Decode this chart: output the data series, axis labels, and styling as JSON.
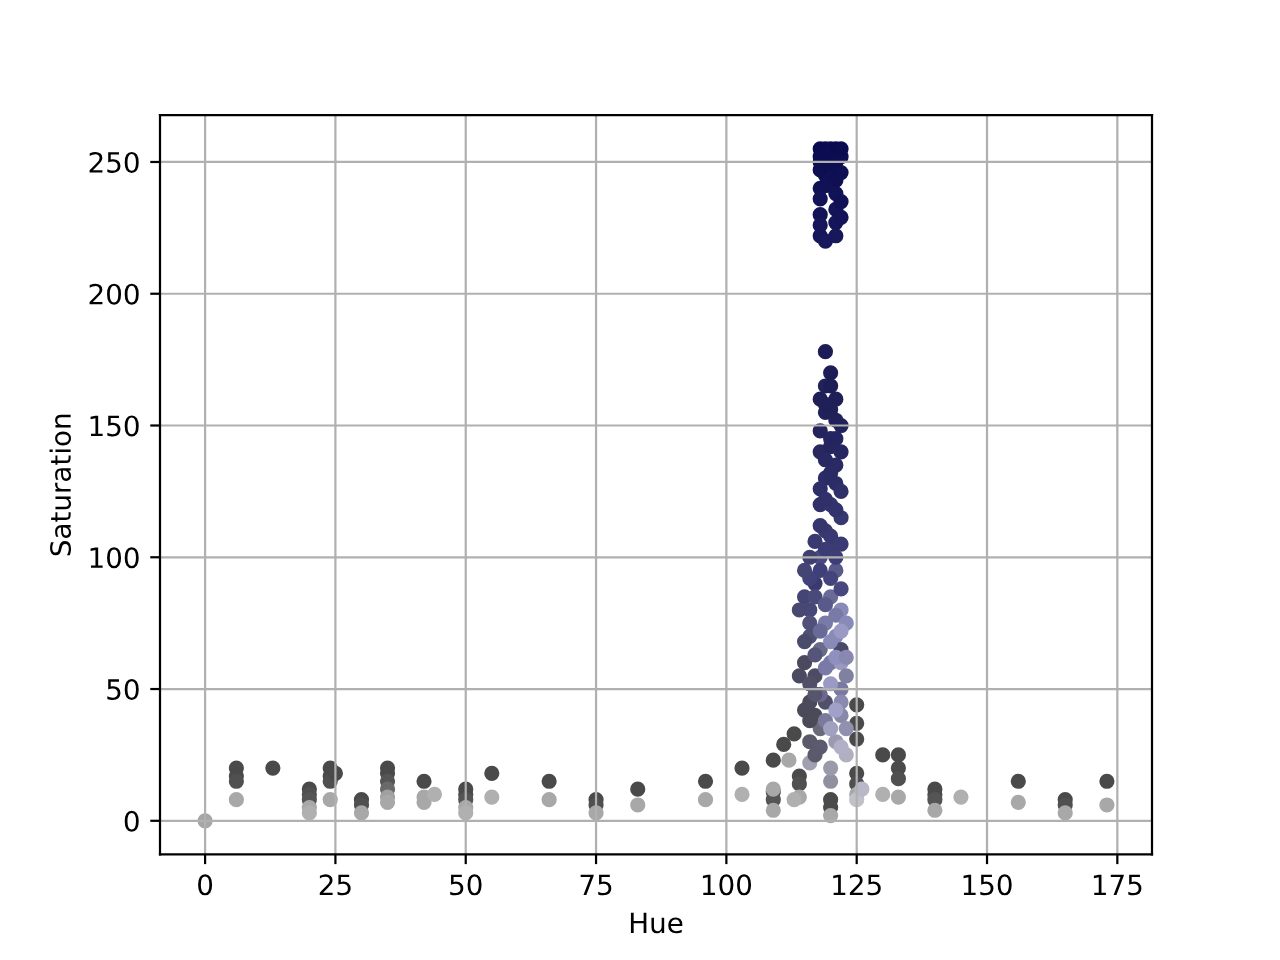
{
  "chart_data": {
    "type": "scatter",
    "xlabel": "Hue",
    "ylabel": "Saturation",
    "x": [
      0,
      6,
      6,
      6,
      6,
      13,
      20,
      20,
      20,
      20,
      20,
      24,
      24,
      24,
      24,
      25,
      30,
      30,
      30,
      35,
      35,
      35,
      35,
      35,
      35,
      42,
      42,
      42,
      44,
      50,
      50,
      50,
      50,
      50,
      55,
      55,
      66,
      66,
      75,
      75,
      75,
      83,
      83,
      96,
      96,
      103,
      103,
      109,
      109,
      109,
      109,
      109,
      111,
      112,
      113,
      114,
      114,
      114,
      113,
      116,
      120,
      120,
      120,
      120,
      120,
      125,
      125,
      125,
      125,
      125,
      125,
      125,
      126,
      130,
      130,
      133,
      133,
      133,
      133,
      140,
      140,
      140,
      140,
      145,
      156,
      156,
      165,
      165,
      165,
      173,
      173,
      116,
      117,
      118,
      119,
      121,
      122,
      123,
      122,
      116,
      117,
      115,
      116,
      118,
      120,
      121,
      122,
      123,
      122,
      115,
      116,
      117,
      118,
      120,
      121,
      122,
      119,
      116,
      119,
      121,
      118,
      120,
      122,
      119,
      121,
      118,
      120,
      122,
      119,
      121,
      119,
      120,
      119,
      118,
      119,
      120,
      121,
      122,
      118,
      120,
      119,
      121,
      118,
      121,
      118,
      118,
      119,
      121,
      122,
      118,
      122,
      119,
      121,
      118,
      122,
      121,
      118,
      122,
      119,
      121,
      118,
      120,
      118,
      120,
      121,
      118,
      120,
      122,
      119,
      121,
      118,
      120,
      122,
      119,
      121,
      118,
      120,
      122,
      119,
      117,
      121,
      118,
      116,
      120,
      122,
      119,
      121,
      115,
      117,
      119,
      121,
      123,
      114,
      116,
      118,
      120,
      122,
      115,
      117,
      119,
      121,
      123,
      114,
      116,
      118,
      120,
      122,
      115,
      117,
      119,
      121,
      123,
      116,
      118,
      120,
      122,
      117
    ],
    "values": [
      0,
      20,
      17,
      15,
      8,
      20,
      12,
      10,
      8,
      5,
      3,
      20,
      17,
      15,
      8,
      18,
      8,
      6,
      3,
      20,
      18,
      15,
      12,
      9,
      7,
      15,
      9,
      7,
      10,
      12,
      10,
      8,
      5,
      3,
      18,
      9,
      15,
      8,
      8,
      6,
      3,
      12,
      6,
      15,
      8,
      20,
      10,
      23,
      11,
      8,
      12,
      4,
      29,
      23,
      33,
      17,
      14,
      9,
      8,
      22,
      8,
      5,
      2,
      15,
      20,
      44,
      37,
      31,
      18,
      14,
      10,
      8,
      12,
      25,
      10,
      25,
      20,
      16,
      9,
      12,
      10,
      8,
      4,
      9,
      15,
      7,
      8,
      6,
      3,
      15,
      6,
      30,
      40,
      35,
      45,
      30,
      40,
      25,
      50,
      45,
      55,
      60,
      70,
      65,
      60,
      70,
      60,
      55,
      65,
      85,
      80,
      90,
      100,
      85,
      95,
      80,
      75,
      100,
      110,
      105,
      120,
      120,
      115,
      130,
      135,
      140,
      145,
      150,
      155,
      160,
      165,
      170,
      178,
      255,
      255,
      255,
      255,
      252,
      250,
      248,
      245,
      243,
      240,
      232,
      230,
      222,
      253,
      250,
      255,
      247,
      246,
      241,
      238,
      236,
      235,
      227,
      226,
      229,
      220,
      222,
      252,
      165,
      160,
      156,
      152,
      148,
      142,
      140,
      137,
      128,
      126,
      132,
      125,
      122,
      118,
      112,
      108,
      105,
      103,
      106,
      100,
      95,
      92,
      92,
      88,
      158,
      145,
      95,
      85,
      82,
      78,
      75,
      80,
      75,
      72,
      68,
      72,
      68,
      63,
      58,
      62,
      62,
      55,
      52,
      48,
      52,
      45,
      42,
      48,
      38,
      42,
      35,
      38,
      28,
      35,
      28,
      25
    ],
    "colors": [
      "#a6a6a6",
      "#4a4a4a",
      "#4a4a4a",
      "#505050",
      "#a8a8a8",
      "#4a4a4a",
      "#4a4a4a",
      "#505050",
      "#555555",
      "#a8a8a8",
      "#b0b0b0",
      "#4a4a4a",
      "#4a4a4a",
      "#505050",
      "#a8a8a8",
      "#4a4a4a",
      "#4a4a4a",
      "#505050",
      "#a8a8a8",
      "#4a4a4a",
      "#4a4a4a",
      "#555555",
      "#6a6a6a",
      "#a0a0a0",
      "#a8a8a8",
      "#4a4a4a",
      "#a8a8a8",
      "#a8a8a8",
      "#b0b0b0",
      "#4a4a4a",
      "#4a4a4a",
      "#555555",
      "#a8a8a8",
      "#b0b0b0",
      "#4a4a4a",
      "#b0b0b0",
      "#4a4a4a",
      "#a8a8a8",
      "#4a4a4a",
      "#505050",
      "#a8a8a8",
      "#4a4a4a",
      "#a8a8a8",
      "#4a4a4a",
      "#a8a8a8",
      "#4a4a4a",
      "#b0b0b0",
      "#4a4a4a",
      "#4a4a4a",
      "#555555",
      "#a8a8a8",
      "#a8a8a8",
      "#4a4a4a",
      "#a8a8a8",
      "#4a4a4a",
      "#4a4a4a",
      "#505050",
      "#a8a8a8",
      "#b0b0b0",
      "#a0a0b0",
      "#4a4a4a",
      "#4a4a4a",
      "#a8a8a8",
      "#9090a0",
      "#9a9aaa",
      "#4a4a4a",
      "#4a4a4a",
      "#4a4a4a",
      "#4a4a4a",
      "#505050",
      "#a8a8a8",
      "#c0c0c8",
      "#b8b8c8",
      "#4a4a4a",
      "#b0b0b0",
      "#4a4a4a",
      "#4a4a4a",
      "#505050",
      "#a8a8a8",
      "#4a4a4a",
      "#4a4a4a",
      "#555555",
      "#a8a8a8",
      "#b0b0b0",
      "#4a4a4a",
      "#a8a8a8",
      "#4a4a4a",
      "#505050",
      "#a8a8a8",
      "#4a4a4a",
      "#a8a8a8",
      "#5a5a6a",
      "#4a4a5a",
      "#6a6a7a",
      "#505068",
      "#9a9ab0",
      "#8888a8",
      "#b0b0c0",
      "#7a7aa0",
      "#4a4a58",
      "#4c4c66",
      "#4a4a5e",
      "#505070",
      "#6a6a8a",
      "#7a7aa8",
      "#8a8ab8",
      "#9a9ac0",
      "#8080a0",
      "#4a4a68",
      "#454575",
      "#484878",
      "#3a3a6e",
      "#4a4a80",
      "#6a6a98",
      "#5a5a8a",
      "#8a8ab8",
      "#7a7aa8",
      "#404070",
      "#3a3a6c",
      "#3c3c70",
      "#30306a",
      "#343470",
      "#383870",
      "#2c2c66",
      "#2a2a64",
      "#28285e",
      "#262660",
      "#24245c",
      "#22225a",
      "#202058",
      "#22225a",
      "#1e1e56",
      "#1c1c56",
      "#0a0a50",
      "#0b0b50",
      "#0c0c52",
      "#0a0a4e",
      "#0e0e54",
      "#0c0c50",
      "#0e0e52",
      "#101054",
      "#0f0f52",
      "#111155",
      "#141458",
      "#131357",
      "#16165a",
      "#0c0c50",
      "#0d0d52",
      "#0b0b4f",
      "#0e0e52",
      "#0f0f53",
      "#111155",
      "#121256",
      "#131357",
      "#111155",
      "#15155a",
      "#16165a",
      "#141458",
      "#18185c",
      "#17175b",
      "#0c0c50",
      "#1e1e56",
      "#202058",
      "#212159",
      "#22225a",
      "#24245c",
      "#26265e",
      "#262660",
      "#282862",
      "#2c2c66",
      "#2e2e68",
      "#2a2a64",
      "#303068",
      "#30306a",
      "#32326c",
      "#36366e",
      "#383872",
      "#3a3a74",
      "#3c3c74",
      "#3a3a70",
      "#3e3e76",
      "#404078",
      "#42427a",
      "#44447c",
      "#48487e",
      "#202058",
      "#242460",
      "#454575",
      "#4a4a7a",
      "#5a5a8a",
      "#7a7aa8",
      "#8a8ab8",
      "#484870",
      "#50507a",
      "#6a6a98",
      "#8a8ab8",
      "#9a9ac4",
      "#4a4a6a",
      "#55557a",
      "#7a7aa8",
      "#9090c0",
      "#8888b0",
      "#4a4a60",
      "#505068",
      "#6a6a90",
      "#9a9ac4",
      "#8a8ab0",
      "#4a4a5a",
      "#555570",
      "#7a7a9c",
      "#a0a0c8",
      "#9090b0",
      "#4a4a58",
      "#5a5a70",
      "#a0a0c0",
      "#b0b0c8",
      "#5a5a6a"
    ],
    "xlim": [
      -8.65,
      181.65
    ],
    "ylim": [
      -12.75,
      267.75
    ],
    "xticks": [
      0,
      25,
      50,
      75,
      100,
      125,
      150,
      175
    ],
    "yticks": [
      0,
      50,
      100,
      150,
      200,
      250
    ],
    "grid": true,
    "marker": "circle"
  }
}
